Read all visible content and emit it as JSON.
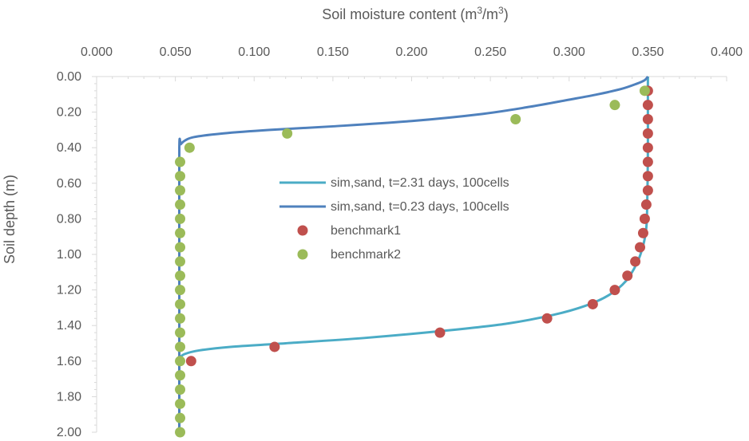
{
  "chart_data": {
    "type": "scatter",
    "title": "",
    "xlabel": "Soil moisture content (m3/m3)",
    "xlabel_parts": {
      "pre": "Soil moisture content (m",
      "sup1": "3",
      "mid": "/m",
      "sup2": "3",
      "post": ")"
    },
    "ylabel": "Soil depth (m)",
    "x_axis_position": "top",
    "y_axis_inverted": true,
    "xlim": [
      0.0,
      0.4
    ],
    "ylim": [
      0.0,
      2.0
    ],
    "x_ticks": [
      "0.000",
      "0.050",
      "0.100",
      "0.150",
      "0.200",
      "0.250",
      "0.300",
      "0.350",
      "0.400"
    ],
    "y_ticks": [
      "0.00",
      "0.20",
      "0.40",
      "0.60",
      "0.80",
      "1.00",
      "1.20",
      "1.40",
      "1.60",
      "1.80",
      "2.00"
    ],
    "grid": false,
    "legend_position": "center",
    "series": [
      {
        "name": "sim,sand, t=2.31 days, 100cells",
        "kind": "line",
        "color": "#4bacc6",
        "points": [
          [
            0.35,
            0.0
          ],
          [
            0.35,
            0.2
          ],
          [
            0.35,
            0.4
          ],
          [
            0.3498,
            0.6
          ],
          [
            0.3495,
            0.75
          ],
          [
            0.349,
            0.85
          ],
          [
            0.347,
            0.95
          ],
          [
            0.343,
            1.05
          ],
          [
            0.336,
            1.15
          ],
          [
            0.325,
            1.23
          ],
          [
            0.31,
            1.29
          ],
          [
            0.29,
            1.34
          ],
          [
            0.26,
            1.39
          ],
          [
            0.22,
            1.43
          ],
          [
            0.17,
            1.47
          ],
          [
            0.12,
            1.5
          ],
          [
            0.085,
            1.52
          ],
          [
            0.065,
            1.54
          ],
          [
            0.056,
            1.56
          ],
          [
            0.053,
            1.58
          ],
          [
            0.0525,
            1.6
          ],
          [
            0.0525,
            1.8
          ],
          [
            0.0525,
            2.0
          ]
        ]
      },
      {
        "name": "sim,sand, t=0.23 days, 100cells",
        "kind": "line",
        "color": "#4f81bd",
        "points": [
          [
            0.35,
            0.0
          ],
          [
            0.348,
            0.02
          ],
          [
            0.343,
            0.04
          ],
          [
            0.333,
            0.07
          ],
          [
            0.318,
            0.1
          ],
          [
            0.3,
            0.13
          ],
          [
            0.275,
            0.17
          ],
          [
            0.245,
            0.21
          ],
          [
            0.2,
            0.25
          ],
          [
            0.15,
            0.28
          ],
          [
            0.11,
            0.3
          ],
          [
            0.08,
            0.32
          ],
          [
            0.062,
            0.34
          ],
          [
            0.056,
            0.36
          ],
          [
            0.0535,
            0.38
          ],
          [
            0.0525,
            0.4
          ],
          [
            0.0525,
            1.0
          ],
          [
            0.0525,
            1.6
          ],
          [
            0.0525,
            2.0
          ]
        ]
      },
      {
        "name": "benchmark1",
        "kind": "scatter",
        "color": "#c0504d",
        "points": [
          [
            0.35,
            0.08
          ],
          [
            0.35,
            0.16
          ],
          [
            0.35,
            0.24
          ],
          [
            0.35,
            0.32
          ],
          [
            0.35,
            0.4
          ],
          [
            0.35,
            0.48
          ],
          [
            0.35,
            0.56
          ],
          [
            0.35,
            0.64
          ],
          [
            0.349,
            0.72
          ],
          [
            0.348,
            0.8
          ],
          [
            0.347,
            0.88
          ],
          [
            0.345,
            0.96
          ],
          [
            0.342,
            1.04
          ],
          [
            0.337,
            1.12
          ],
          [
            0.329,
            1.2
          ],
          [
            0.315,
            1.28
          ],
          [
            0.286,
            1.36
          ],
          [
            0.218,
            1.44
          ],
          [
            0.113,
            1.52
          ],
          [
            0.06,
            1.6
          ]
        ]
      },
      {
        "name": "benchmark2",
        "kind": "scatter",
        "color": "#9bbb59",
        "points": [
          [
            0.348,
            0.08
          ],
          [
            0.329,
            0.16
          ],
          [
            0.266,
            0.24
          ],
          [
            0.121,
            0.32
          ],
          [
            0.059,
            0.4
          ],
          [
            0.053,
            0.48
          ],
          [
            0.053,
            0.56
          ],
          [
            0.053,
            0.64
          ],
          [
            0.053,
            0.72
          ],
          [
            0.053,
            0.8
          ],
          [
            0.053,
            0.88
          ],
          [
            0.053,
            0.96
          ],
          [
            0.053,
            1.04
          ],
          [
            0.053,
            1.12
          ],
          [
            0.053,
            1.2
          ],
          [
            0.053,
            1.28
          ],
          [
            0.053,
            1.36
          ],
          [
            0.053,
            1.44
          ],
          [
            0.053,
            1.52
          ],
          [
            0.053,
            1.6
          ],
          [
            0.053,
            1.68
          ],
          [
            0.053,
            1.76
          ],
          [
            0.053,
            1.84
          ],
          [
            0.053,
            1.92
          ],
          [
            0.053,
            2.0
          ]
        ]
      }
    ]
  }
}
